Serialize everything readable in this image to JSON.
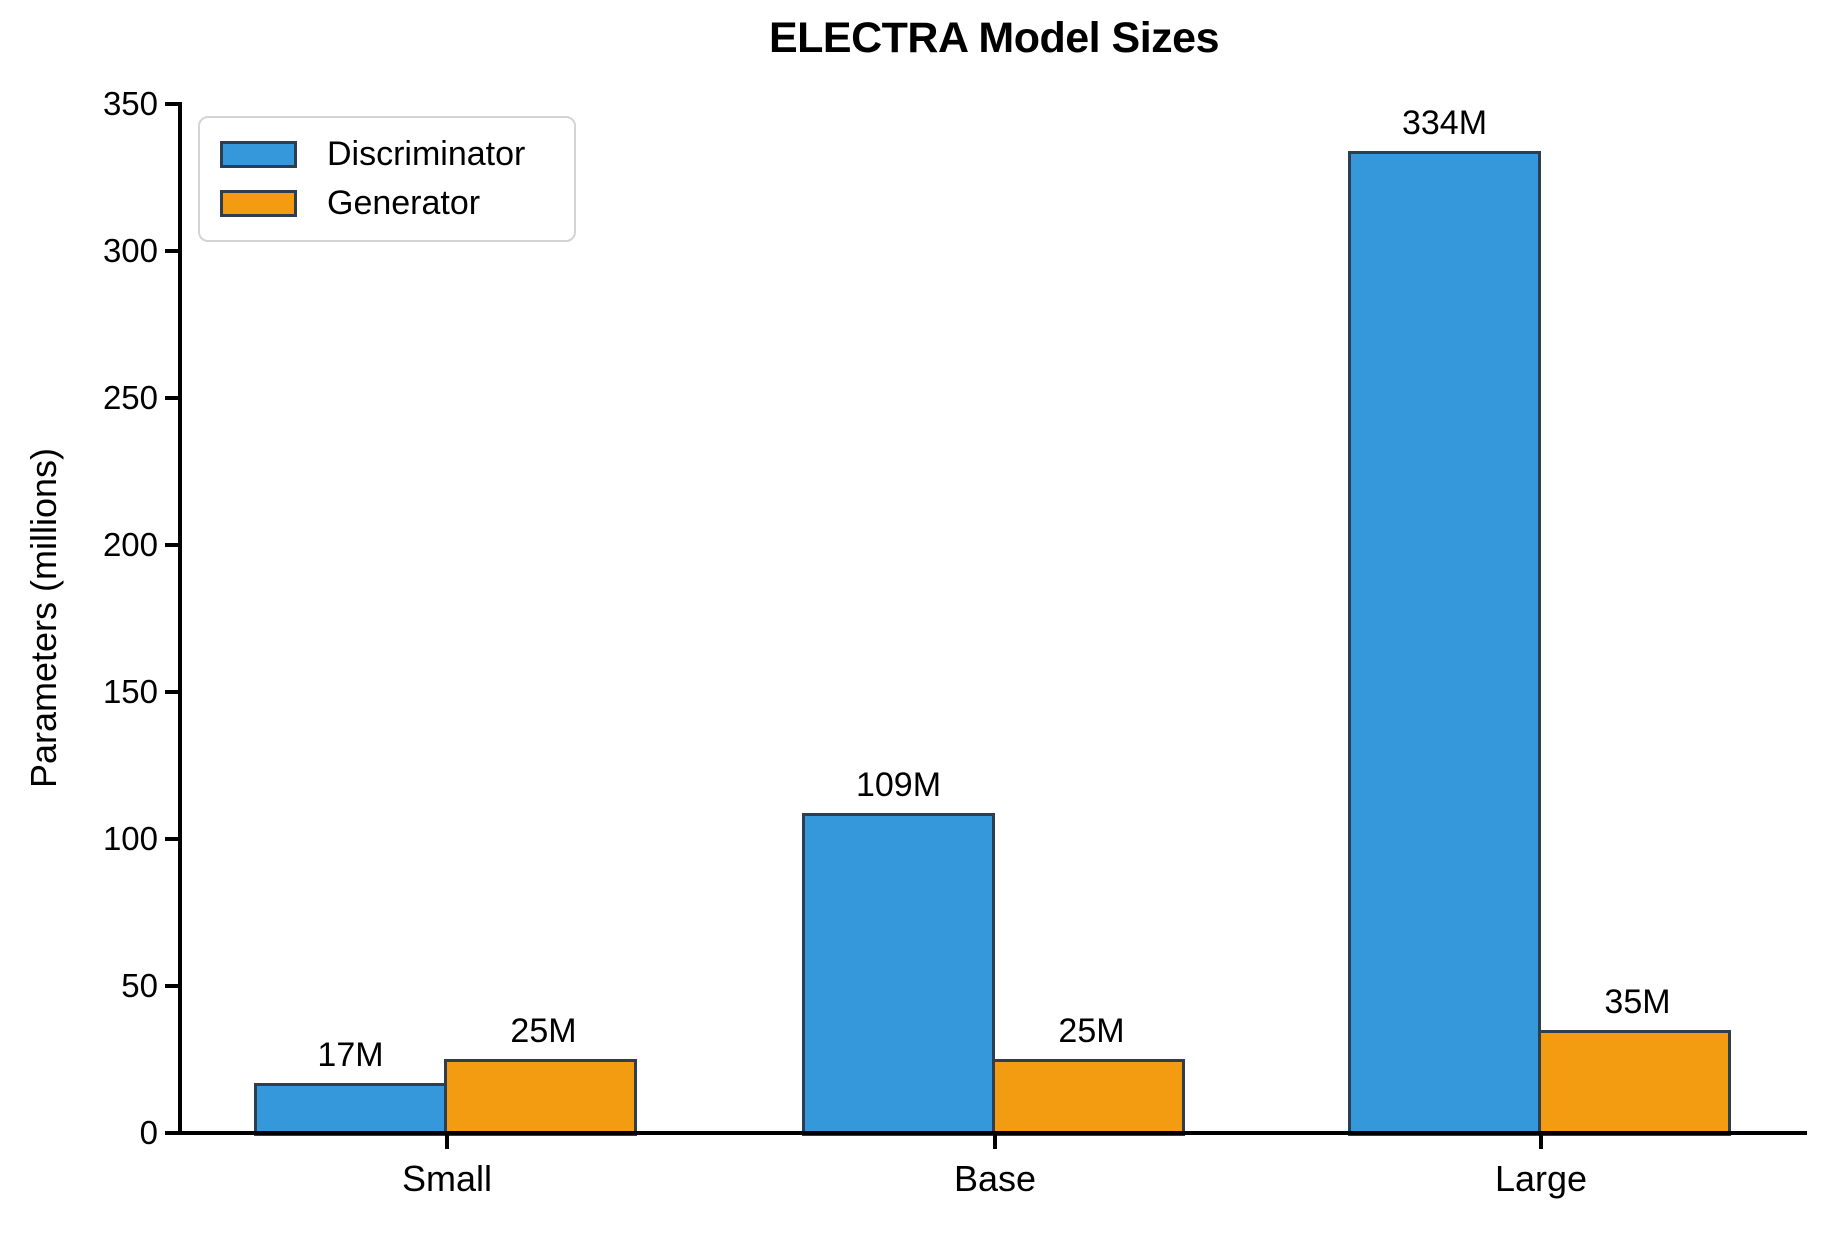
{
  "figure": {
    "background": "#ffffff",
    "text_color": "#000000"
  },
  "chart_data": {
    "type": "bar",
    "title": "ELECTRA Model Sizes",
    "ylabel": "Parameters (millions)",
    "xlabel": "",
    "categories": [
      "Small",
      "Base",
      "Large"
    ],
    "series": [
      {
        "name": "Discriminator",
        "color": "#3498db",
        "values": [
          17,
          109,
          334
        ],
        "labels": [
          "17M",
          "109M",
          "334M"
        ]
      },
      {
        "name": "Generator",
        "color": "#f39c12",
        "values": [
          25,
          25,
          35
        ],
        "labels": [
          "25M",
          "25M",
          "35M"
        ]
      }
    ],
    "ylim": [
      0,
      350
    ],
    "yticks": [
      0,
      50,
      100,
      150,
      200,
      250,
      300,
      350
    ],
    "bar_edge_color": "#2c3e50",
    "axis_color": "#000000",
    "legend_position": "upper left",
    "grid": false,
    "data_labels": true
  }
}
